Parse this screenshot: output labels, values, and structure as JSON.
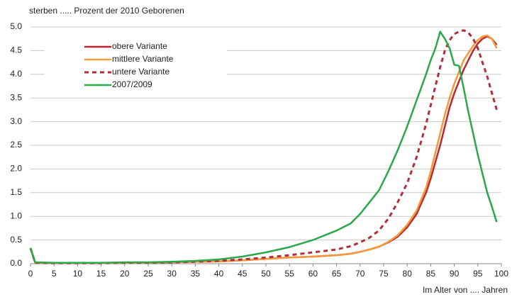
{
  "chart_data": {
    "type": "line",
    "title": "sterben ..... Prozent der 2010 Geborenen",
    "x_label": "Im Alter von .... Jahren",
    "x": [
      0,
      1,
      5,
      10,
      15,
      20,
      25,
      30,
      35,
      40,
      45,
      50,
      55,
      60,
      65,
      68,
      70,
      72,
      74,
      76,
      78,
      80,
      82,
      84,
      85,
      86,
      87,
      88,
      89,
      90,
      91,
      92,
      93,
      94,
      95,
      96,
      97,
      98,
      99
    ],
    "series": [
      {
        "name": "obere Variante",
        "color": "#c0272d",
        "dash": false,
        "values": [
          0.33,
          0.02,
          0.01,
          0.01,
          0.01,
          0.02,
          0.02,
          0.03,
          0.04,
          0.05,
          0.07,
          0.1,
          0.13,
          0.15,
          0.18,
          0.21,
          0.25,
          0.3,
          0.36,
          0.45,
          0.57,
          0.77,
          1.05,
          1.5,
          1.8,
          2.15,
          2.5,
          2.9,
          3.3,
          3.6,
          3.85,
          4.1,
          4.3,
          4.5,
          4.65,
          4.75,
          4.8,
          4.75,
          4.62
        ]
      },
      {
        "name": "mittlere Variante",
        "color": "#f39a3d",
        "dash": false,
        "values": [
          0.33,
          0.02,
          0.01,
          0.01,
          0.01,
          0.02,
          0.02,
          0.03,
          0.04,
          0.05,
          0.07,
          0.1,
          0.13,
          0.15,
          0.18,
          0.21,
          0.25,
          0.3,
          0.36,
          0.46,
          0.6,
          0.82,
          1.12,
          1.6,
          1.95,
          2.35,
          2.75,
          3.15,
          3.5,
          3.8,
          4.05,
          4.3,
          4.45,
          4.6,
          4.72,
          4.8,
          4.82,
          4.75,
          4.55
        ]
      },
      {
        "name": "untere Variante",
        "color": "#b0303a",
        "dash": true,
        "values": [
          0.33,
          0.02,
          0.01,
          0.01,
          0.01,
          0.02,
          0.02,
          0.03,
          0.04,
          0.06,
          0.09,
          0.13,
          0.18,
          0.24,
          0.3,
          0.37,
          0.45,
          0.55,
          0.7,
          0.95,
          1.3,
          1.7,
          2.25,
          2.95,
          3.35,
          3.75,
          4.15,
          4.5,
          4.72,
          4.85,
          4.9,
          4.93,
          4.88,
          4.75,
          4.55,
          4.25,
          3.95,
          3.6,
          3.25
        ]
      },
      {
        "name": "2007/2009",
        "color": "#2aa84a",
        "dash": false,
        "values": [
          0.33,
          0.03,
          0.02,
          0.02,
          0.02,
          0.03,
          0.03,
          0.04,
          0.06,
          0.09,
          0.15,
          0.24,
          0.35,
          0.5,
          0.7,
          0.85,
          1.05,
          1.3,
          1.55,
          1.95,
          2.4,
          2.9,
          3.45,
          4.0,
          4.3,
          4.55,
          4.9,
          4.75,
          4.55,
          4.2,
          4.18,
          3.7,
          3.2,
          2.75,
          2.3,
          1.9,
          1.5,
          1.2,
          0.88
        ]
      }
    ],
    "xlim": [
      0,
      100
    ],
    "xticks": [
      0,
      5,
      10,
      15,
      20,
      25,
      30,
      35,
      40,
      45,
      50,
      55,
      60,
      65,
      70,
      75,
      80,
      85,
      90,
      95,
      100
    ],
    "ylim": [
      0,
      5
    ],
    "yticks": [
      {
        "value": 0,
        "label": "0.0"
      },
      0.5,
      {
        "value": 1,
        "label": "1.0"
      },
      1.5,
      {
        "value": 2,
        "label": "2.0"
      },
      2.5,
      {
        "value": 3,
        "label": "3.0"
      },
      3.5,
      {
        "value": 4,
        "label": "4.0"
      },
      4.5,
      {
        "value": 5,
        "label": "5.0"
      }
    ],
    "grid": true,
    "legend": "upper left"
  }
}
